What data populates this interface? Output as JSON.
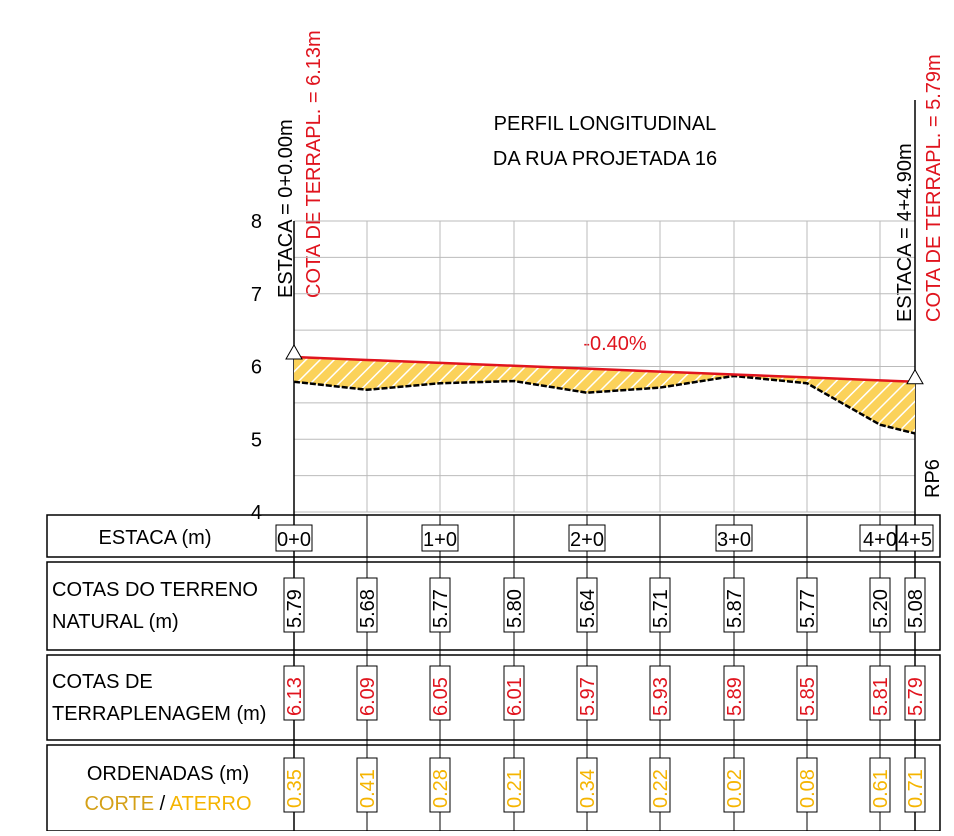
{
  "title": [
    "PERFIL LONGITUDINAL",
    "DA RUA PROJETADA 16"
  ],
  "y_labels": [
    "8",
    "7",
    "6",
    "5",
    "4"
  ],
  "start": {
    "estaca": "ESTACA = 0+0.00m",
    "cota": "COTA DE TERRAPL. = 6.13m"
  },
  "end": {
    "estaca": "ESTACA = 4+4.90m",
    "cota": "COTA DE TERRAPL. = 5.79m"
  },
  "slope": "-0.40%",
  "rp": "RP6",
  "table": {
    "estaca": {
      "label": "ESTACA (m)",
      "values": [
        "0+0",
        "1+0",
        "2+0",
        "3+0",
        "4+0",
        "4+5"
      ]
    },
    "terreno": {
      "label": [
        "COTAS DO TERRENO",
        "NATURAL (m)"
      ],
      "values": [
        "5.79",
        "5.68",
        "5.77",
        "5.80",
        "5.64",
        "5.71",
        "5.87",
        "5.77",
        "5.20",
        "5.08"
      ]
    },
    "terraplenagem": {
      "label": [
        "COTAS DE",
        "TERRAPLENAGEM (m)"
      ],
      "values": [
        "6.13",
        "6.09",
        "6.05",
        "6.01",
        "5.97",
        "5.93",
        "5.89",
        "5.85",
        "5.81",
        "5.79"
      ]
    },
    "ordenadas": {
      "label": "ORDENADAS (m)",
      "corte": "CORTE",
      "sep": "/",
      "aterro": "ATERRO",
      "values": [
        "0.35",
        "0.41",
        "0.28",
        "0.21",
        "0.34",
        "0.22",
        "0.02",
        "0.08",
        "0.61",
        "0.71"
      ]
    }
  }
}
